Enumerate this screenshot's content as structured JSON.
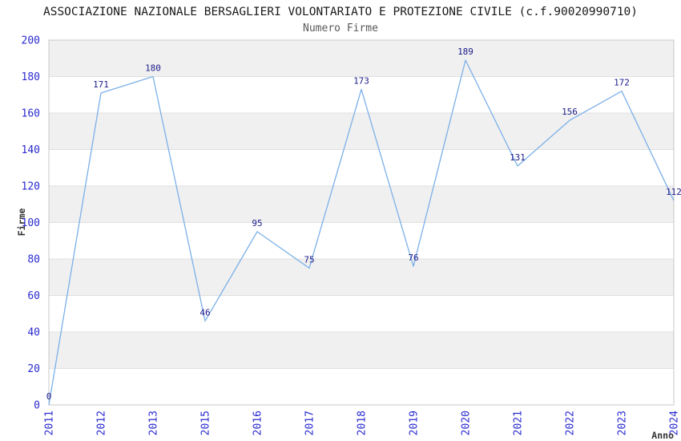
{
  "chart_data": {
    "type": "line",
    "title": "ASSOCIAZIONE NAZIONALE BERSAGLIERI VOLONTARIATO E PROTEZIONE CIVILE (c.f.90020990710)",
    "subtitle": "Numero Firme",
    "xlabel": "Anno",
    "ylabel": "Firme",
    "categories": [
      "2011",
      "2012",
      "2013",
      "2015",
      "2016",
      "2017",
      "2018",
      "2019",
      "2020",
      "2021",
      "2022",
      "2023",
      "2024"
    ],
    "values": [
      0,
      171,
      180,
      46,
      95,
      75,
      173,
      76,
      189,
      131,
      156,
      172,
      112
    ],
    "yticks": [
      0,
      20,
      40,
      60,
      80,
      100,
      120,
      140,
      160,
      180,
      200
    ],
    "ylim": [
      0,
      200
    ],
    "ytick_step": 20,
    "grid": true,
    "legend": "none",
    "band_fill_alternating": true,
    "colors": {
      "line": "#7cb0e8",
      "data_label": "#1b1b8a",
      "tick_label": "#2a2ad0",
      "band": "#f0f0f0",
      "gridline": "#e0e0e0",
      "border": "#c8c8c8",
      "title": "#1a1a1a",
      "subtitle": "#595959",
      "axis_label": "#333333"
    }
  }
}
